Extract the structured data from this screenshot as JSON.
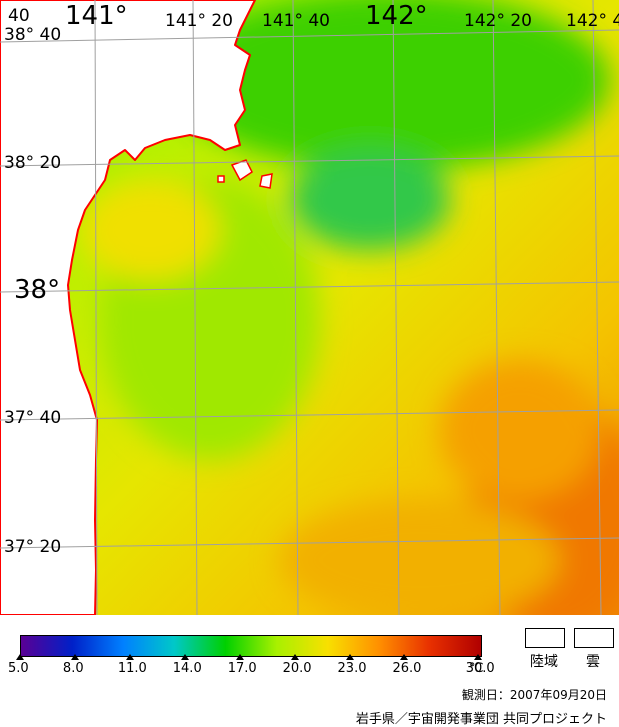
{
  "map": {
    "lon_labels": [
      "141°",
      "141° 20",
      "141° 40",
      "142°",
      "142° 20",
      "142° 4"
    ],
    "lat_labels": [
      "38° 40",
      "38° 20",
      "38°",
      "37° 40",
      "37° 20"
    ],
    "corner_fragment": "40"
  },
  "colorbar": {
    "ticks": [
      "5.0",
      "8.0",
      "11.0",
      "14.0",
      "17.0",
      "20.0",
      "23.0",
      "26.0",
      "30.0"
    ],
    "unit": "℃",
    "colors": [
      "#5a0094",
      "#0020c8",
      "#0080ff",
      "#00c8c8",
      "#00d000",
      "#a8f000",
      "#f8e000",
      "#ff9000",
      "#e83000",
      "#b00000"
    ]
  },
  "legend": {
    "land_label": "陸域",
    "cloud_label": "雲"
  },
  "observation_date": "観測日：2007年09月20日",
  "credit": "岩手県／宇宙開発事業団 共同プロジェクト",
  "colors": {
    "coastline": "#ff0000",
    "grid": "#a0a0a0",
    "land": "#ffffff"
  }
}
